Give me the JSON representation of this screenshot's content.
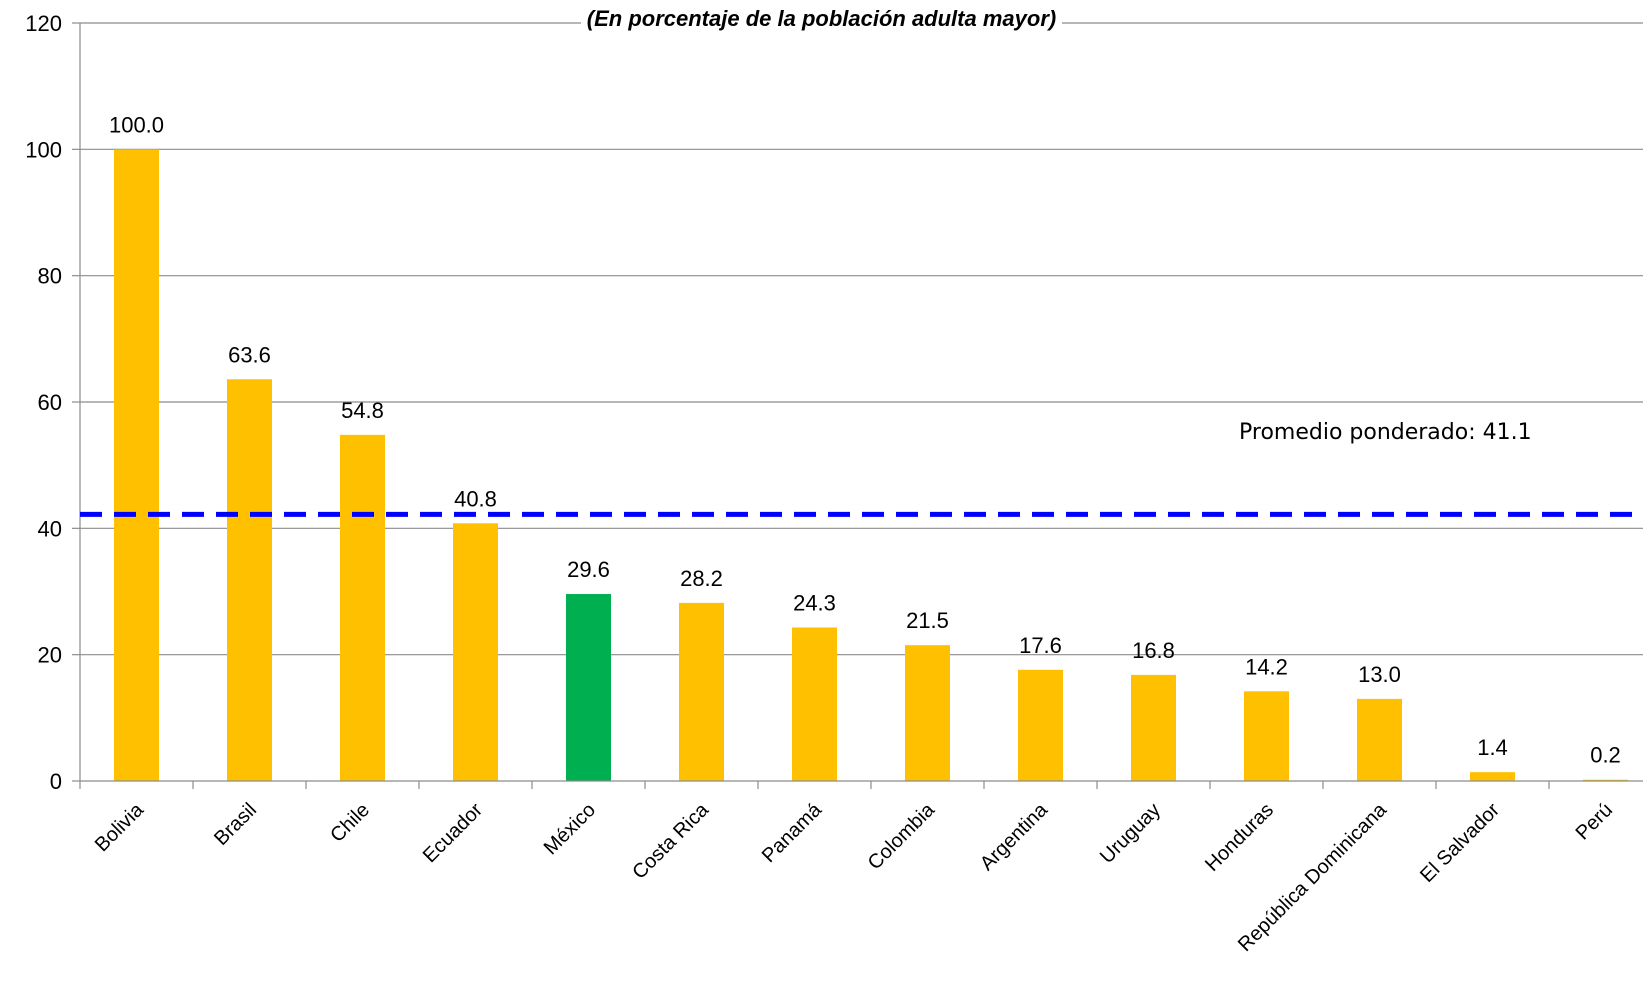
{
  "chart_data": {
    "type": "bar",
    "subtitle": "(En porcentaje de la población adulta mayor)",
    "categories": [
      "Bolivia",
      "Brasil",
      "Chile",
      "Ecuador",
      "México",
      "Costa Rica",
      "Panamá",
      "Colombia",
      "Argentina",
      "Uruguay",
      "Honduras",
      "República Dominicana",
      "El Salvador",
      "Perú"
    ],
    "values": [
      100.0,
      63.6,
      54.8,
      40.8,
      29.6,
      28.2,
      24.3,
      21.5,
      17.6,
      16.8,
      14.2,
      13.0,
      1.4,
      0.2
    ],
    "value_labels": [
      "100.0",
      "63.6",
      "54.8",
      "40.8",
      "29.6",
      "28.2",
      "24.3",
      "21.5",
      "17.6",
      "16.8",
      "14.2",
      "13.0",
      "1.4",
      "0.2"
    ],
    "bar_colors": [
      "#FFC000",
      "#FFC000",
      "#FFC000",
      "#FFC000",
      "#00B050",
      "#FFC000",
      "#FFC000",
      "#FFC000",
      "#FFC000",
      "#FFC000",
      "#FFC000",
      "#FFC000",
      "#FFC000",
      "#FFC000"
    ],
    "ylim": [
      0,
      120
    ],
    "yticks": [
      0,
      20,
      40,
      60,
      80,
      100,
      120
    ],
    "grid": true,
    "reference_line": {
      "label": "Promedio ponderado: 41.1",
      "value": 41.1,
      "color": "#0000FF",
      "style": "dashed"
    }
  }
}
